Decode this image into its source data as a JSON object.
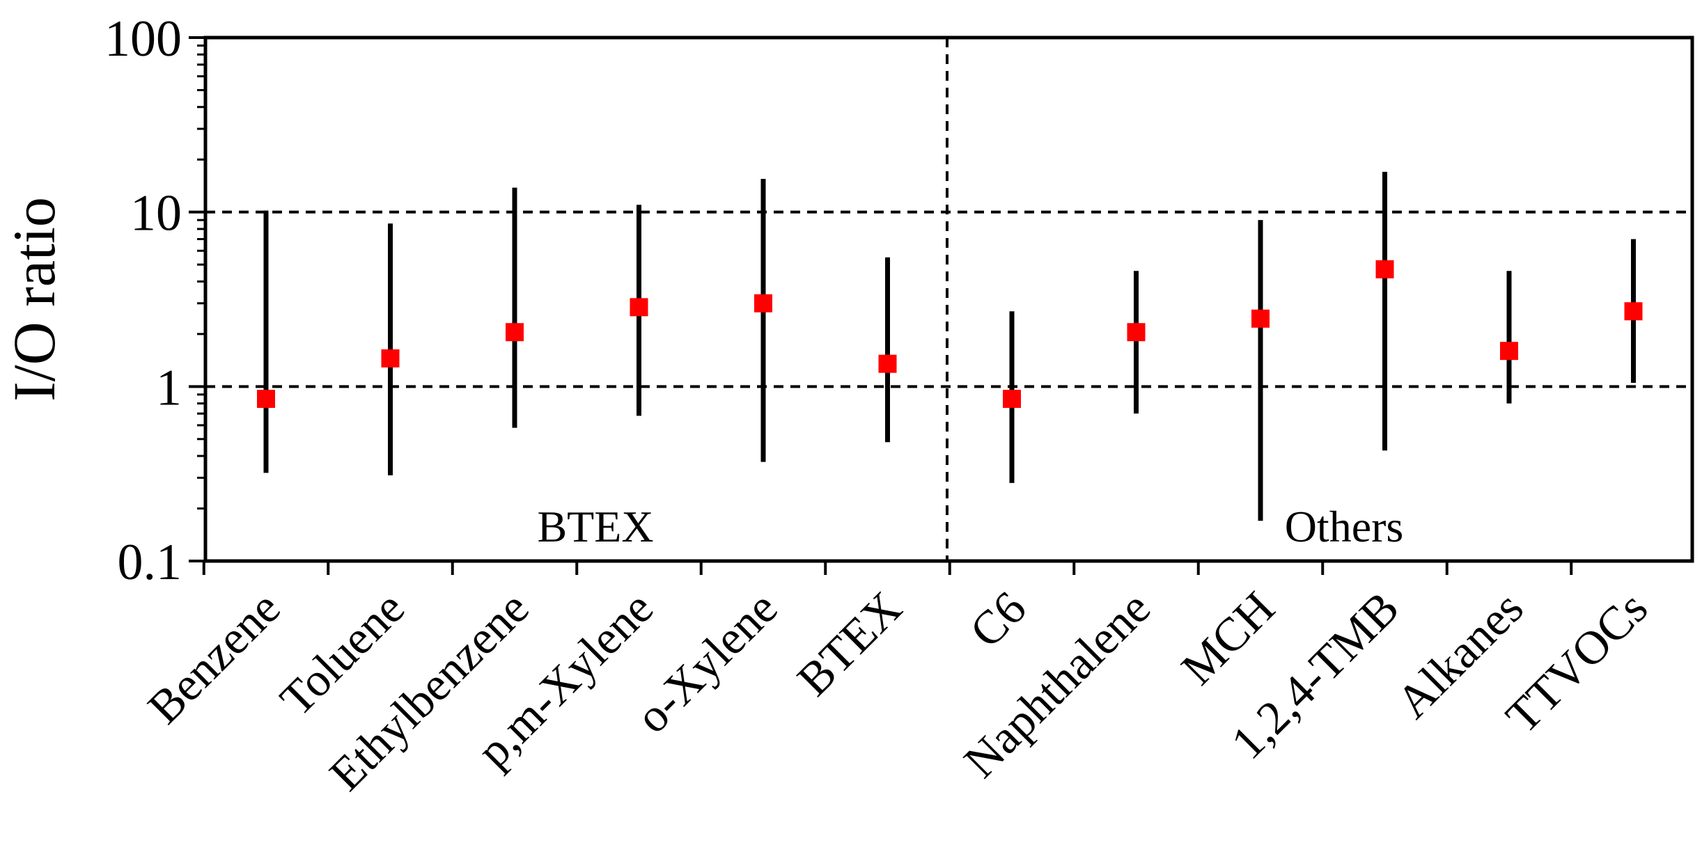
{
  "chart_data": {
    "type": "scatter",
    "ylabel": "I/O ratio",
    "y_scale": "log",
    "ylim": [
      0.1,
      100
    ],
    "yticks": [
      "0.1",
      "1",
      "10",
      "100"
    ],
    "reference_lines_y": [
      1,
      10
    ],
    "categories": [
      "Benzene",
      "Toluene",
      "Ethylbenzene",
      "p,m-Xylene",
      "o-Xylene",
      "BTEX",
      "C6",
      "Naphthalene",
      "MCH",
      "1,2,4-TMB",
      "Alkanes",
      "TTVOCs"
    ],
    "center": [
      0.85,
      1.45,
      2.05,
      2.85,
      3.0,
      1.35,
      0.85,
      2.05,
      2.45,
      4.7,
      1.6,
      2.7
    ],
    "low": [
      0.32,
      0.31,
      0.58,
      0.68,
      0.37,
      0.48,
      0.28,
      0.7,
      0.17,
      0.43,
      0.8,
      1.05
    ],
    "high": [
      10.2,
      8.6,
      13.8,
      11.0,
      15.5,
      5.5,
      2.7,
      4.6,
      9.0,
      17.0,
      4.6,
      7.0
    ],
    "groups": [
      {
        "label": "BTEX",
        "categories": [
          "Benzene",
          "Toluene",
          "Ethylbenzene",
          "p,m-Xylene",
          "o-Xylene",
          "BTEX"
        ]
      },
      {
        "label": "Others",
        "categories": [
          "C6",
          "Naphthalene",
          "MCH",
          "1,2,4-TMB",
          "Alkanes",
          "TTVOCs"
        ]
      }
    ],
    "colors": {
      "marker": "#ff0000",
      "range_line": "#000000",
      "axes": "#000000"
    },
    "grid": false
  }
}
